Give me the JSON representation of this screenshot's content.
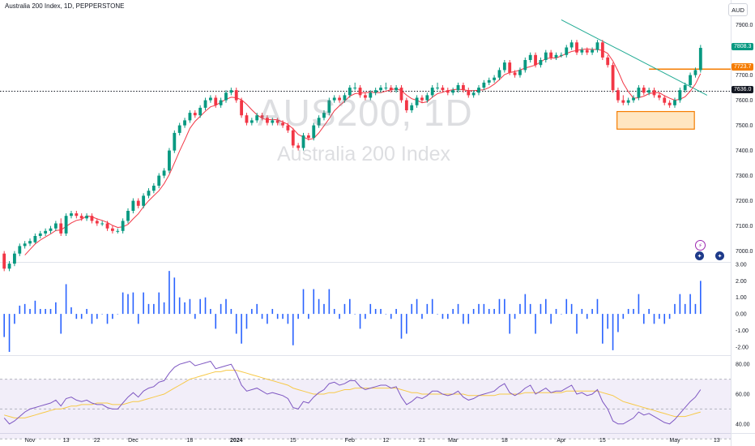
{
  "header": {
    "title": "Australia 200 Index, 1D, PEPPERSTONE",
    "currency": "AUD"
  },
  "watermark": {
    "symbol": "AUS200, 1D",
    "description": "Australia 200 Index"
  },
  "price_axis": {
    "ticks": [
      "7900.0",
      "7700.0",
      "7600.0",
      "7500.0",
      "7400.0",
      "7300.0",
      "7200.0",
      "7100.0",
      "7000.0"
    ],
    "labels": {
      "last": "7808.3",
      "level": "7723.7",
      "line": "7636.0"
    }
  },
  "osc_axis": {
    "ticks": [
      "3.00",
      "2.00",
      "1.00",
      "0.00",
      "-1.00",
      "-2.00"
    ]
  },
  "rsi_axis": {
    "ticks": [
      "80.00",
      "60.00",
      "40.00"
    ]
  },
  "time_axis": {
    "ticks": [
      "Nov",
      "13",
      "22",
      "Dec",
      "18",
      "2024",
      "15",
      "Feb",
      "12",
      "21",
      "Mar",
      "18",
      "Apr",
      "15",
      "May",
      "13"
    ]
  },
  "icons": {
    "alert": "lightning-icon",
    "flag": "australia-flag-icon"
  },
  "colors": {
    "up": "#089981",
    "down": "#f23645",
    "hist": "#2962ff",
    "trend": "#22ab94",
    "zone": "#f57c00",
    "rsi": "#7e57c2",
    "rsi_ma": "#f7c948"
  },
  "chart_data": [
    {
      "type": "candlestick",
      "title": "Australia 200 Index, 1D, PEPPERSTONE",
      "ylim": [
        6960,
        7960
      ],
      "x": [
        "2023-10-27",
        "2023-10-30",
        "2023-10-31",
        "2023-11-01",
        "2023-11-02",
        "2023-11-03",
        "2023-11-06",
        "2023-11-07",
        "2023-11-08",
        "2023-11-09",
        "2023-11-10",
        "2023-11-13",
        "2023-11-14",
        "2023-11-15",
        "2023-11-16",
        "2023-11-17",
        "2023-11-20",
        "2023-11-21",
        "2023-11-22",
        "2023-11-23",
        "2023-11-24",
        "2023-11-27",
        "2023-11-28",
        "2023-11-29",
        "2023-11-30",
        "2023-12-01",
        "2023-12-04",
        "2023-12-05",
        "2023-12-06",
        "2023-12-07",
        "2023-12-08",
        "2023-12-11",
        "2023-12-12",
        "2023-12-13",
        "2023-12-14",
        "2023-12-15",
        "2023-12-18",
        "2023-12-19",
        "2023-12-20",
        "2023-12-21",
        "2023-12-22",
        "2023-12-26",
        "2023-12-27",
        "2023-12-28",
        "2023-12-29",
        "2024-01-02",
        "2024-01-03",
        "2024-01-04",
        "2024-01-05",
        "2024-01-08",
        "2024-01-09",
        "2024-01-10",
        "2024-01-11",
        "2024-01-12",
        "2024-01-15",
        "2024-01-16",
        "2024-01-17",
        "2024-01-18",
        "2024-01-19",
        "2024-01-22",
        "2024-01-23",
        "2024-01-24",
        "2024-01-25",
        "2024-01-26",
        "2024-01-29",
        "2024-01-30",
        "2024-01-31",
        "2024-02-01",
        "2024-02-02",
        "2024-02-05",
        "2024-02-06",
        "2024-02-07",
        "2024-02-08",
        "2024-02-09",
        "2024-02-12",
        "2024-02-13",
        "2024-02-14",
        "2024-02-15",
        "2024-02-16",
        "2024-02-19",
        "2024-02-20",
        "2024-02-21",
        "2024-02-22",
        "2024-02-23",
        "2024-02-26",
        "2024-02-27",
        "2024-02-28",
        "2024-02-29",
        "2024-03-01",
        "2024-03-04",
        "2024-03-05",
        "2024-03-06",
        "2024-03-07",
        "2024-03-08",
        "2024-03-11",
        "2024-03-12",
        "2024-03-13",
        "2024-03-14",
        "2024-03-15",
        "2024-03-18",
        "2024-03-19",
        "2024-03-20",
        "2024-03-21",
        "2024-03-22",
        "2024-03-25",
        "2024-03-26",
        "2024-03-27",
        "2024-03-28",
        "2024-04-01",
        "2024-04-02",
        "2024-04-03",
        "2024-04-04",
        "2024-04-05",
        "2024-04-08",
        "2024-04-09",
        "2024-04-10",
        "2024-04-11",
        "2024-04-12",
        "2024-04-15",
        "2024-04-16",
        "2024-04-17",
        "2024-04-18",
        "2024-04-19",
        "2024-04-22",
        "2024-04-23",
        "2024-04-24",
        "2024-04-25",
        "2024-04-26",
        "2024-04-29",
        "2024-04-30",
        "2024-05-01",
        "2024-05-02",
        "2024-05-03",
        "2024-05-06",
        "2024-05-07",
        "2024-05-08"
      ],
      "open": [
        6990,
        6930,
        6950,
        6990,
        7020,
        7030,
        7035,
        7060,
        7070,
        7080,
        7090,
        7110,
        7070,
        7140,
        7150,
        7140,
        7130,
        7140,
        7120,
        7110,
        7110,
        7090,
        7080,
        7080,
        7120,
        7160,
        7200,
        7180,
        7220,
        7240,
        7260,
        7300,
        7320,
        7400,
        7470,
        7500,
        7520,
        7550,
        7540,
        7570,
        7600,
        7610,
        7580,
        7600,
        7630,
        7640,
        7600,
        7540,
        7510,
        7520,
        7540,
        7530,
        7510,
        7520,
        7510,
        7500,
        7480,
        7420,
        7410,
        7460,
        7450,
        7500,
        7530,
        7550,
        7600,
        7610,
        7600,
        7620,
        7650,
        7650,
        7620,
        7610,
        7630,
        7640,
        7650,
        7650,
        7640,
        7650,
        7600,
        7560,
        7580,
        7610,
        7600,
        7620,
        7650,
        7650,
        7640,
        7630,
        7640,
        7660,
        7640,
        7620,
        7630,
        7650,
        7670,
        7680,
        7690,
        7720,
        7750,
        7710,
        7700,
        7720,
        7760,
        7780,
        7740,
        7760,
        7790,
        7770,
        7780,
        7780,
        7810,
        7830,
        7790,
        7800,
        7790,
        7800,
        7830,
        7770,
        7740,
        7640,
        7600,
        7590,
        7600,
        7610,
        7650,
        7630,
        7640,
        7620,
        7610,
        7590,
        7580,
        7600,
        7640,
        7660,
        7700,
        7720
      ],
      "close": [
        6930,
        6950,
        6990,
        7020,
        7030,
        7040,
        7060,
        7070,
        7080,
        7090,
        7110,
        7070,
        7140,
        7150,
        7140,
        7130,
        7140,
        7120,
        7110,
        7110,
        7090,
        7080,
        7080,
        7120,
        7160,
        7200,
        7180,
        7220,
        7240,
        7260,
        7300,
        7320,
        7400,
        7470,
        7500,
        7520,
        7550,
        7540,
        7570,
        7600,
        7610,
        7580,
        7600,
        7630,
        7640,
        7600,
        7540,
        7510,
        7520,
        7540,
        7530,
        7510,
        7520,
        7510,
        7500,
        7480,
        7420,
        7410,
        7460,
        7450,
        7500,
        7530,
        7550,
        7600,
        7610,
        7600,
        7620,
        7650,
        7650,
        7620,
        7610,
        7630,
        7640,
        7650,
        7650,
        7640,
        7650,
        7600,
        7560,
        7580,
        7610,
        7600,
        7620,
        7650,
        7650,
        7640,
        7630,
        7640,
        7660,
        7640,
        7620,
        7630,
        7650,
        7670,
        7680,
        7690,
        7720,
        7750,
        7710,
        7700,
        7720,
        7760,
        7780,
        7740,
        7760,
        7790,
        7770,
        7780,
        7780,
        7810,
        7830,
        7790,
        7800,
        7790,
        7800,
        7830,
        7770,
        7740,
        7640,
        7600,
        7590,
        7600,
        7610,
        7650,
        7630,
        7640,
        7620,
        7610,
        7590,
        7580,
        7600,
        7640,
        7660,
        7700,
        7720,
        7808.3
      ],
      "high": [
        7000,
        6960,
        7000,
        7030,
        7040,
        7050,
        7070,
        7080,
        7090,
        7100,
        7120,
        7130,
        7150,
        7160,
        7160,
        7150,
        7150,
        7150,
        7130,
        7120,
        7120,
        7100,
        7090,
        7130,
        7170,
        7210,
        7210,
        7230,
        7250,
        7270,
        7310,
        7330,
        7410,
        7480,
        7510,
        7530,
        7560,
        7560,
        7580,
        7610,
        7620,
        7620,
        7610,
        7640,
        7650,
        7650,
        7610,
        7550,
        7530,
        7550,
        7550,
        7540,
        7530,
        7530,
        7520,
        7510,
        7490,
        7430,
        7470,
        7470,
        7510,
        7540,
        7560,
        7610,
        7620,
        7620,
        7630,
        7660,
        7670,
        7660,
        7630,
        7640,
        7650,
        7660,
        7670,
        7660,
        7660,
        7660,
        7610,
        7590,
        7620,
        7620,
        7630,
        7660,
        7670,
        7660,
        7650,
        7650,
        7670,
        7670,
        7650,
        7640,
        7660,
        7680,
        7690,
        7700,
        7730,
        7760,
        7760,
        7720,
        7730,
        7770,
        7790,
        7790,
        7770,
        7800,
        7800,
        7790,
        7790,
        7820,
        7840,
        7840,
        7810,
        7810,
        7810,
        7840,
        7840,
        7780,
        7750,
        7650,
        7620,
        7610,
        7620,
        7660,
        7660,
        7650,
        7650,
        7630,
        7620,
        7600,
        7610,
        7650,
        7670,
        7710,
        7730,
        7820
      ],
      "low": [
        6920,
        6920,
        6940,
        6980,
        7010,
        7020,
        7030,
        7050,
        7060,
        7070,
        7080,
        7060,
        7060,
        7130,
        7130,
        7120,
        7120,
        7110,
        7100,
        7100,
        7080,
        7070,
        7070,
        7070,
        7110,
        7150,
        7170,
        7170,
        7210,
        7230,
        7250,
        7290,
        7310,
        7390,
        7460,
        7490,
        7510,
        7530,
        7530,
        7560,
        7590,
        7570,
        7570,
        7590,
        7620,
        7590,
        7530,
        7500,
        7500,
        7510,
        7520,
        7500,
        7500,
        7500,
        7490,
        7470,
        7410,
        7400,
        7400,
        7440,
        7440,
        7490,
        7520,
        7540,
        7590,
        7590,
        7590,
        7610,
        7640,
        7610,
        7600,
        7600,
        7620,
        7630,
        7640,
        7630,
        7630,
        7590,
        7550,
        7550,
        7570,
        7590,
        7590,
        7610,
        7640,
        7630,
        7620,
        7620,
        7630,
        7630,
        7610,
        7610,
        7620,
        7640,
        7660,
        7670,
        7680,
        7710,
        7700,
        7690,
        7690,
        7710,
        7750,
        7730,
        7730,
        7750,
        7760,
        7760,
        7770,
        7770,
        7800,
        7780,
        7780,
        7780,
        7780,
        7790,
        7760,
        7730,
        7630,
        7590,
        7580,
        7580,
        7590,
        7600,
        7620,
        7620,
        7610,
        7600,
        7580,
        7570,
        7570,
        7590,
        7630,
        7650,
        7690,
        7710
      ]
    },
    {
      "type": "bar",
      "title": "",
      "ylim": [
        -2.5,
        3.0
      ],
      "values": [
        -1.4,
        -2.3,
        -0.6,
        0.5,
        0.6,
        0.3,
        0.8,
        0.3,
        0.3,
        0.3,
        0.7,
        -1.2,
        1.8,
        0.4,
        -0.3,
        -0.3,
        0.3,
        -0.6,
        -0.3,
        0.0,
        -0.6,
        -0.3,
        0.0,
        1.3,
        1.2,
        1.3,
        -0.6,
        1.3,
        0.6,
        0.6,
        1.3,
        0.7,
        2.6,
        2.2,
        1.0,
        0.7,
        0.9,
        -0.3,
        0.9,
        1.0,
        0.3,
        -0.9,
        0.6,
        0.9,
        0.3,
        -1.2,
        -1.8,
        -0.9,
        0.3,
        0.6,
        -0.3,
        -0.6,
        0.3,
        -0.3,
        -0.3,
        -0.6,
        -1.9,
        -0.3,
        1.5,
        -0.3,
        1.5,
        0.9,
        0.6,
        1.5,
        0.3,
        -0.3,
        0.6,
        0.9,
        0.0,
        -0.9,
        -0.3,
        0.6,
        0.3,
        0.3,
        0.0,
        -0.3,
        0.3,
        -1.5,
        -1.2,
        0.6,
        0.9,
        -0.3,
        0.6,
        0.9,
        0.0,
        -0.3,
        -0.3,
        0.3,
        0.6,
        -0.6,
        -0.6,
        0.3,
        0.6,
        0.6,
        0.3,
        0.3,
        0.9,
        0.9,
        -1.2,
        -0.3,
        0.6,
        1.2,
        0.6,
        -1.2,
        0.6,
        0.9,
        -0.6,
        0.3,
        0.0,
        0.9,
        0.6,
        -1.2,
        0.3,
        -0.3,
        0.3,
        0.9,
        -1.8,
        -0.9,
        -2.2,
        -1.1,
        -0.3,
        0.3,
        0.3,
        1.2,
        -0.6,
        0.3,
        -0.6,
        -0.3,
        -0.6,
        -0.3,
        0.6,
        1.2,
        0.6,
        1.2,
        0.6,
        2.0
      ]
    },
    {
      "type": "line",
      "title": "",
      "ylim": [
        35,
        85
      ],
      "series": [
        {
          "values": [
            44,
            40,
            42,
            45,
            48,
            50,
            51,
            52,
            53,
            54,
            56,
            52,
            57,
            58,
            56,
            55,
            56,
            54,
            53,
            53,
            51,
            50,
            50,
            54,
            58,
            61,
            58,
            62,
            64,
            65,
            68,
            69,
            74,
            78,
            80,
            81,
            82,
            79,
            80,
            81,
            82,
            77,
            78,
            79,
            80,
            74,
            66,
            62,
            63,
            64,
            62,
            60,
            61,
            60,
            59,
            57,
            51,
            50,
            55,
            54,
            58,
            61,
            63,
            67,
            68,
            66,
            67,
            69,
            69,
            65,
            63,
            64,
            65,
            66,
            66,
            64,
            65,
            58,
            53,
            55,
            58,
            57,
            59,
            62,
            62,
            60,
            59,
            60,
            62,
            58,
            56,
            57,
            59,
            60,
            61,
            62,
            65,
            67,
            61,
            59,
            61,
            64,
            66,
            60,
            62,
            64,
            61,
            62,
            62,
            64,
            66,
            60,
            61,
            59,
            60,
            63,
            55,
            50,
            42,
            40,
            40,
            42,
            44,
            48,
            46,
            47,
            45,
            43,
            41,
            40,
            43,
            47,
            51,
            55,
            58,
            63
          ]
        },
        {
          "values": [
            46,
            45,
            44,
            44,
            44,
            45,
            46,
            47,
            48,
            49,
            50,
            50,
            51,
            52,
            52,
            53,
            53,
            53,
            54,
            54,
            54,
            53,
            53,
            53,
            54,
            55,
            55,
            56,
            57,
            58,
            59,
            60,
            62,
            64,
            66,
            68,
            70,
            71,
            72,
            73,
            74,
            75,
            75,
            76,
            76,
            76,
            75,
            74,
            73,
            72,
            71,
            70,
            69,
            68,
            67,
            66,
            64,
            63,
            62,
            61,
            60,
            60,
            60,
            61,
            61,
            62,
            63,
            63,
            64,
            64,
            64,
            64,
            64,
            64,
            64,
            64,
            64,
            63,
            62,
            61,
            61,
            60,
            60,
            60,
            60,
            60,
            60,
            60,
            60,
            60,
            59,
            59,
            59,
            59,
            59,
            59,
            60,
            60,
            60,
            60,
            60,
            61,
            61,
            61,
            61,
            61,
            61,
            61,
            61,
            62,
            62,
            62,
            62,
            62,
            62,
            62,
            61,
            60,
            59,
            57,
            55,
            54,
            53,
            52,
            51,
            50,
            49,
            48,
            47,
            46,
            45,
            45,
            45,
            46,
            47,
            48
          ]
        }
      ]
    }
  ]
}
